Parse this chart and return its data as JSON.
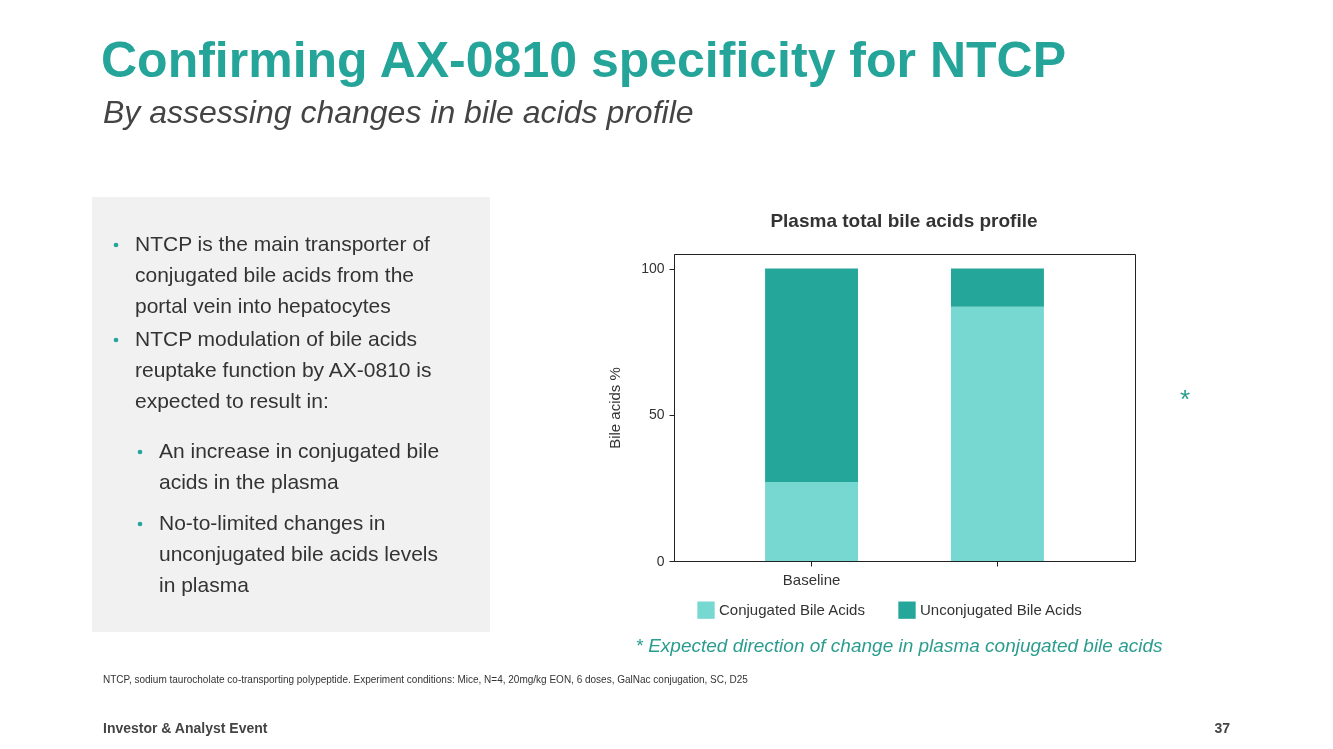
{
  "chart_data": [
    {
      "type": "other",
      "title": "Confirming AX-0810 specificity for NTCP",
      "subtitle": "By assessing changes in bile acids profile",
      "annotations": [
        "NTCP is the main transporter of conjugated bile acids from the portal vein into hepatocytes",
        "NTCP modulation of bile acids reuptake function by AX-0810 is expected to result in:",
        "An increase in conjugated bile acids in the plasma",
        "No-to-limited changes in unconjugated bile acids levels in plasma",
        "NTCP, sodium taurocholate co-transporting polypeptide. Experiment conditions: Mice, N=4, 20mg/kg EON, 6 doses, GalNac conjugation, SC, D25",
        "Investor & Analyst Event",
        "37"
      ]
    },
    {
      "type": "bar",
      "title": "Plasma total bile acids profile",
      "ylabel": "Bile acids %",
      "categories": [
        "Baseline",
        null
      ],
      "series": [
        {
          "name": "Conjugated Bile Acids",
          "color": "#76d8d1",
          "values": [
            27,
            87
          ]
        },
        {
          "name": "Unconjugated Bile Acids",
          "color": "#24a69b",
          "values": [
            73,
            13
          ]
        }
      ],
      "stacked": true,
      "ylim": [
        0,
        105
      ],
      "yticks": [
        0,
        50,
        100
      ],
      "legend": "bottom",
      "annotations": [
        "*",
        "* Expected direction of change in plasma conjugated bile acids"
      ]
    }
  ]
}
